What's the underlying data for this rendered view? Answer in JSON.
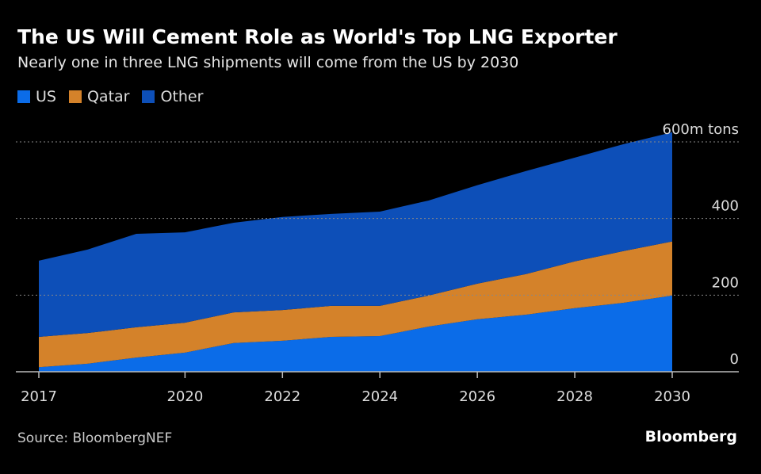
{
  "header": {
    "title": "The US Will Cement Role as World's Top LNG Exporter",
    "subtitle": "Nearly one in three LNG shipments will come from the US by 2030"
  },
  "footer": {
    "source": "Source: BloombergNEF",
    "brand": "Bloomberg"
  },
  "chart_data": {
    "type": "area",
    "stacked": true,
    "title": "The US Will Cement Role as World's Top LNG Exporter",
    "subtitle": "Nearly one in three LNG shipments will come from the US by 2030",
    "ylabel": "m tons",
    "ylim": [
      0,
      640
    ],
    "xlim": [
      2017,
      2030
    ],
    "x": [
      2017,
      2018,
      2019,
      2020,
      2021,
      2022,
      2023,
      2024,
      2025,
      2026,
      2027,
      2028,
      2029,
      2030
    ],
    "series": [
      {
        "name": "US",
        "color": "#0b6ce8",
        "values": [
          12,
          21,
          37,
          50,
          75,
          81,
          91,
          93,
          118,
          137,
          149,
          166,
          180,
          199
        ]
      },
      {
        "name": "Qatar",
        "color": "#d4822a",
        "values": [
          79,
          80,
          79,
          78,
          80,
          80,
          81,
          79,
          81,
          93,
          106,
          122,
          135,
          141
        ]
      },
      {
        "name": "Other",
        "color": "#0d4fb8",
        "values": [
          199,
          218,
          244,
          236,
          234,
          243,
          240,
          246,
          248,
          257,
          269,
          271,
          279,
          285
        ]
      }
    ],
    "x_ticks": [
      2017,
      2020,
      2022,
      2024,
      2026,
      2028,
      2030
    ],
    "x_tick_labels": [
      "2017",
      "2020",
      "2022",
      "2024",
      "2026",
      "2028",
      "2030"
    ],
    "y_ticks": [
      0,
      200,
      400,
      600
    ],
    "y_tick_labels": [
      "0",
      "200",
      "400",
      "600m tons"
    ],
    "grid": true,
    "legend": "top-left"
  }
}
